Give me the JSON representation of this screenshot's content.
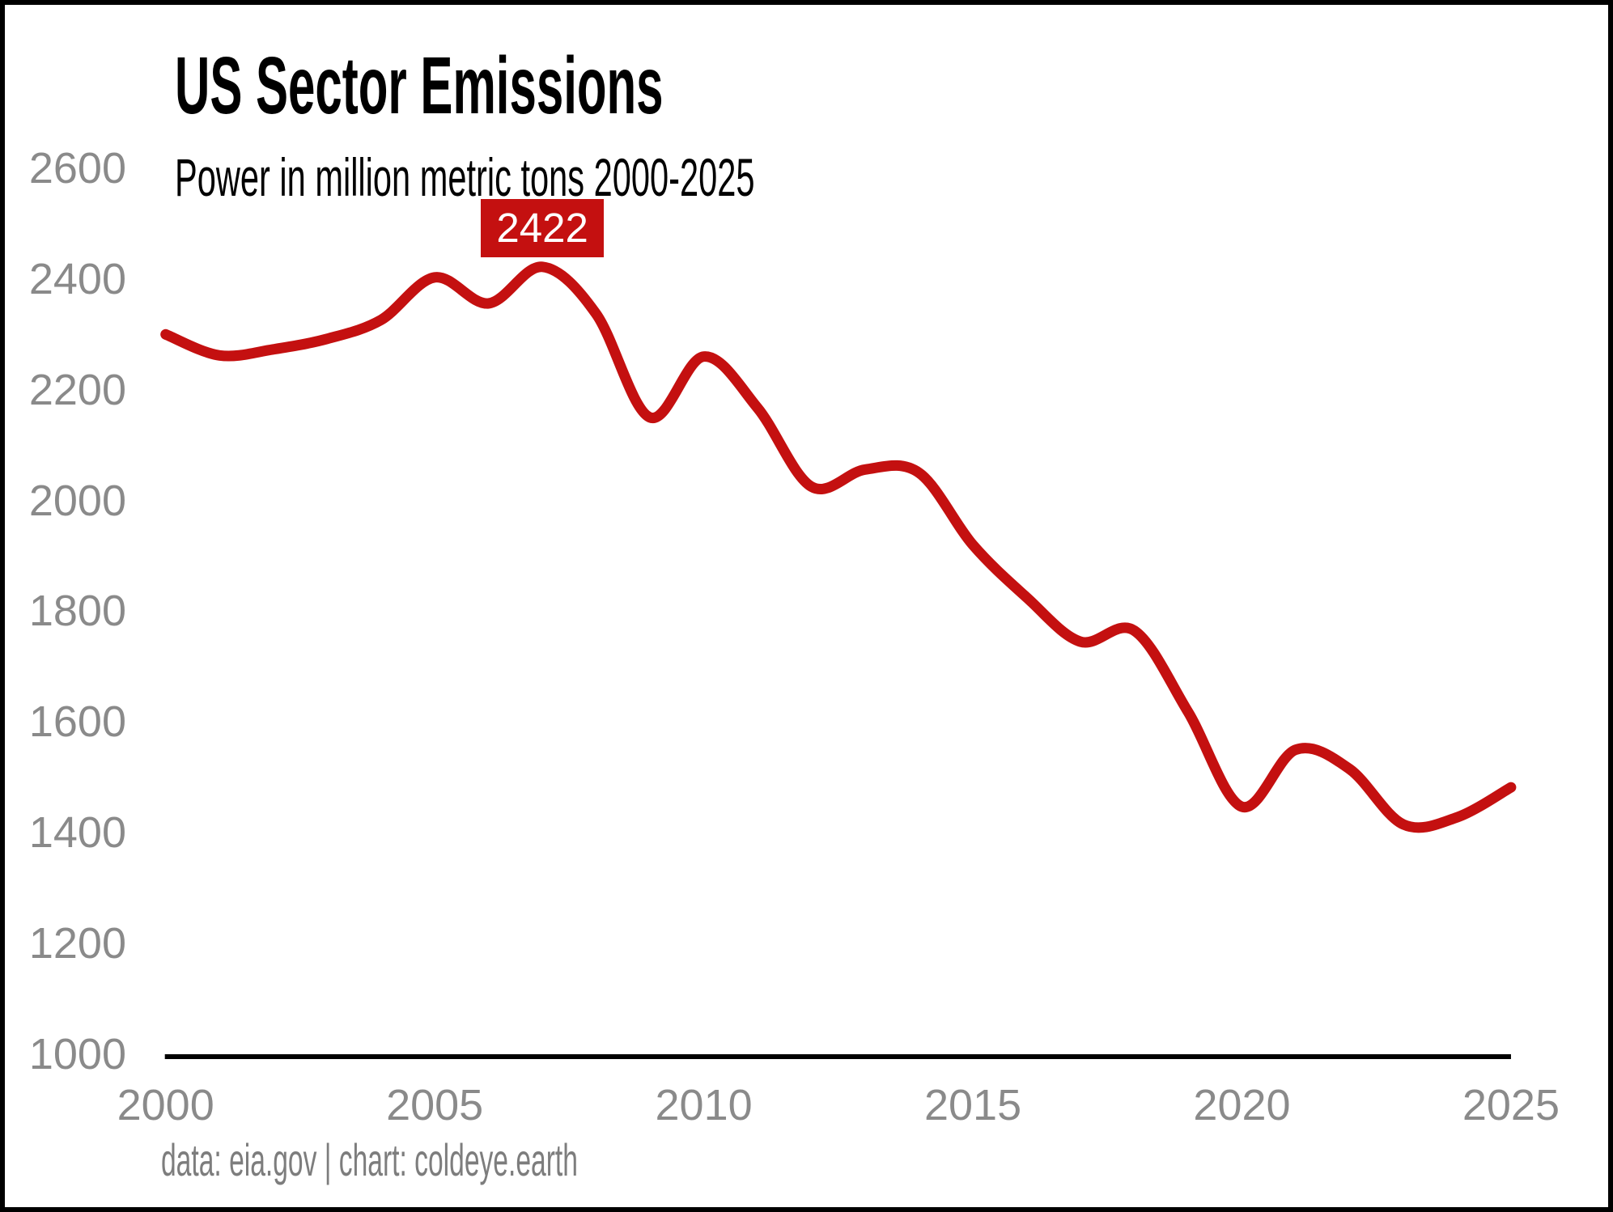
{
  "header": {
    "title": "US Sector Emissions",
    "subtitle": "Power in million metric tons 2000-2025"
  },
  "footer": {
    "credit": "data: eia.gov | chart: coldeye.earth"
  },
  "colors": {
    "line": "#c41010",
    "annotation_bg": "#c41010",
    "annotation_text": "#ffffff",
    "tick_label": "#8a8a8a",
    "footer_text": "#7d7d7d",
    "axis": "#000000",
    "title_text": "#000000",
    "background": "#ffffff",
    "frame_border": "#000000"
  },
  "chart_data": {
    "type": "line",
    "title": "US Sector Emissions",
    "subtitle": "Power in million metric tons 2000-2025",
    "x": [
      2000,
      2001,
      2002,
      2003,
      2004,
      2005,
      2006,
      2007,
      2008,
      2009,
      2010,
      2011,
      2012,
      2013,
      2014,
      2015,
      2016,
      2017,
      2018,
      2019,
      2020,
      2021,
      2022,
      2023,
      2024,
      2025
    ],
    "values": [
      2300,
      2262,
      2273,
      2292,
      2326,
      2403,
      2356,
      2422,
      2337,
      2150,
      2260,
      2167,
      2025,
      2056,
      2050,
      1920,
      1825,
      1745,
      1765,
      1618,
      1447,
      1550,
      1515,
      1415,
      1428,
      1482
    ],
    "xlabel": "",
    "ylabel": "",
    "xlim": [
      2000,
      2025
    ],
    "ylim": [
      1000,
      2600
    ],
    "x_tick_labels": [
      "2000",
      "2005",
      "2010",
      "2015",
      "2020",
      "2025"
    ],
    "x_tick_values": [
      2000,
      2005,
      2010,
      2015,
      2020,
      2025
    ],
    "y_tick_labels": [
      "1000",
      "1200",
      "1400",
      "1600",
      "1800",
      "2000",
      "2200",
      "2400",
      "2600"
    ],
    "y_tick_values": [
      1000,
      1200,
      1400,
      1600,
      1800,
      2000,
      2200,
      2400,
      2600
    ],
    "grid": false,
    "legend": false,
    "annotation": {
      "x": 2007,
      "y": 2422,
      "label": "2422"
    }
  }
}
